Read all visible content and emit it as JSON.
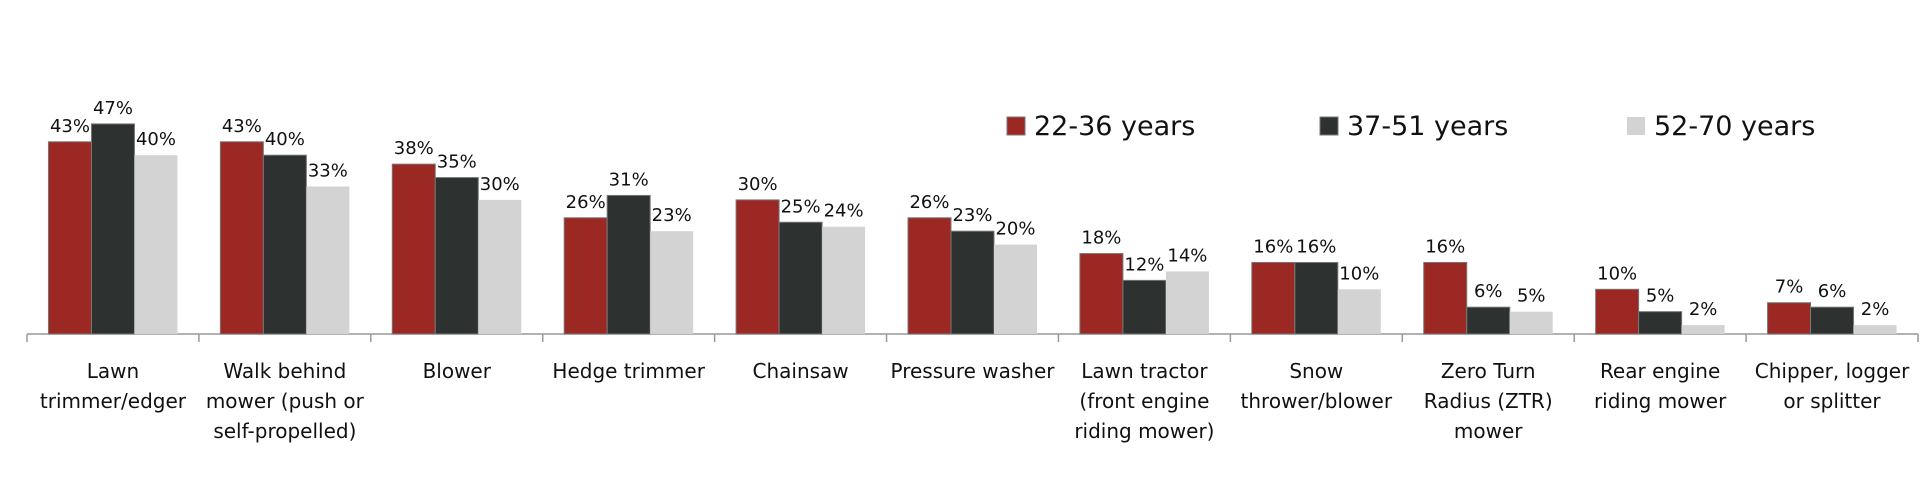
{
  "chart_data": {
    "type": "bar",
    "categories": [
      "Lawn trimmer/edger",
      "Walk behind mower (push or self-propelled)",
      "Blower",
      "Hedge trimmer",
      "Chainsaw",
      "Pressure washer",
      "Lawn tractor (front engine riding mower)",
      "Snow thrower/blower",
      "Zero Turn Radius (ZTR) mower",
      "Rear engine riding mower",
      "Chipper, logger or splitter"
    ],
    "series": [
      {
        "name": "22-36 years",
        "color": "#9b2823",
        "values": [
          43,
          43,
          38,
          26,
          30,
          26,
          18,
          16,
          16,
          10,
          7
        ],
        "value_labels": [
          "43%",
          "43%",
          "38%",
          "26%",
          "30%",
          "26%",
          "18%",
          "16%",
          "16%",
          "10%",
          "7%"
        ]
      },
      {
        "name": "37-51 years",
        "color": "#2d3230",
        "values": [
          47,
          40,
          35,
          31,
          25,
          23,
          12,
          16,
          6,
          5,
          6
        ],
        "value_labels": [
          "47%",
          "40%",
          "35%",
          "31%",
          "25%",
          "23%",
          "12%",
          "16%",
          "6%",
          "5%",
          "6%"
        ]
      },
      {
        "name": "52-70 years",
        "color": "#d3d3d3",
        "values": [
          40,
          33,
          30,
          23,
          24,
          20,
          14,
          10,
          5,
          2,
          2
        ],
        "value_labels": [
          "40%",
          "33%",
          "30%",
          "23%",
          "24%",
          "20%",
          "14%",
          "10%",
          "5%",
          "2%",
          "2%"
        ]
      }
    ],
    "legend": "top-right"
  }
}
